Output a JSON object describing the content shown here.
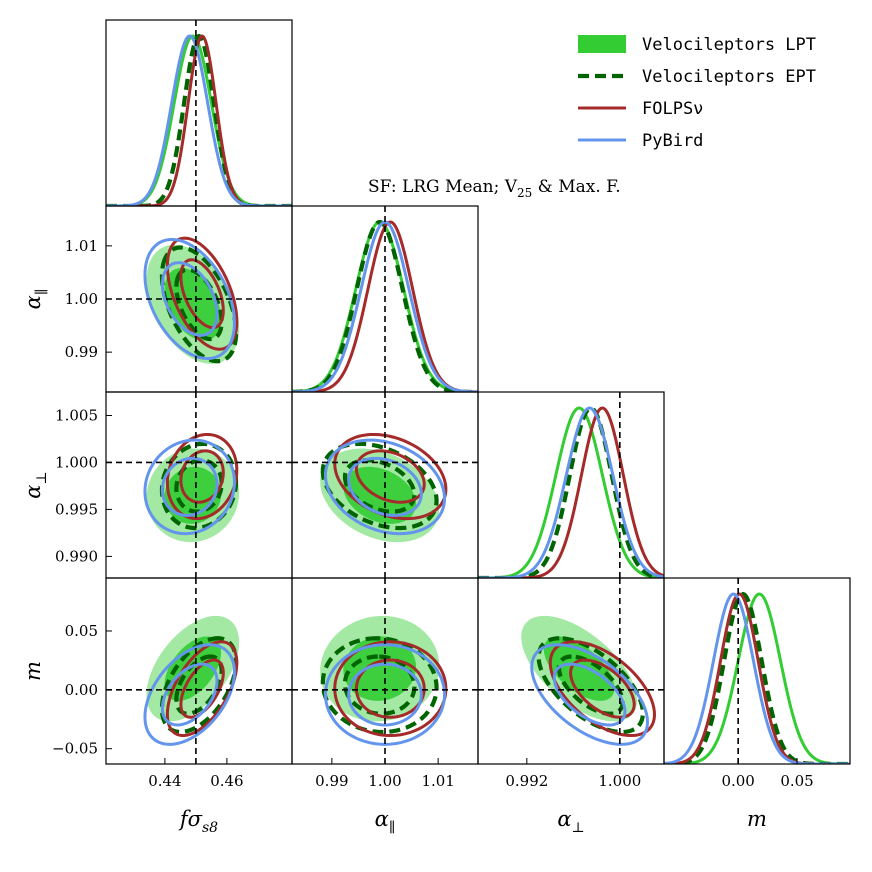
{
  "chart_data": {
    "type": "corner",
    "parameters": [
      {
        "key": "fs8",
        "label": "fσ",
        "label_sub": "s8",
        "ticks": [
          "0.44",
          "0.46"
        ],
        "tick_values": [
          0.44,
          0.46
        ],
        "range": [
          0.421,
          0.481
        ],
        "truth": 0.45
      },
      {
        "key": "apar",
        "label": "α",
        "label_sub": "∥",
        "ticks": [
          "0.99",
          "1.00",
          "1.01"
        ],
        "tick_values": [
          0.99,
          1.0,
          1.01
        ],
        "range": [
          0.9825,
          1.0175
        ],
        "truth": 1.0
      },
      {
        "key": "aperp",
        "label": "α",
        "label_sub": "⊥",
        "ticks": [
          "0.992",
          "1.000"
        ],
        "tick_values": [
          0.992,
          1.0
        ],
        "range": [
          0.9878,
          1.0038
        ],
        "truth": 1.0
      },
      {
        "key": "m",
        "label": "m",
        "label_sub": "",
        "ticks": [
          "0.00",
          "0.05"
        ],
        "tick_values": [
          0.0,
          0.05
        ],
        "range": [
          -0.063,
          0.095
        ],
        "truth": 0.0
      }
    ],
    "row_ticks": {
      "apar": [
        "0.99",
        "1.00",
        "1.01"
      ],
      "aperp": [
        "0.990",
        "0.995",
        "1.000",
        "1.005"
      ],
      "m": [
        "−0.05",
        "0.00",
        "0.05"
      ]
    },
    "row_tick_values": {
      "apar": [
        0.99,
        1.0,
        1.01
      ],
      "aperp": [
        0.99,
        0.995,
        1.0,
        1.005
      ],
      "m": [
        -0.05,
        0.0,
        0.05
      ]
    },
    "row_ranges": {
      "apar": [
        0.9825,
        1.0175
      ],
      "aperp": [
        0.9877,
        1.0075
      ],
      "m": [
        -0.063,
        0.095
      ]
    },
    "series": [
      {
        "name": "Velocileptors LPT",
        "color": "#33cc33",
        "style": "filled",
        "mean": {
          "fs8": 0.449,
          "apar": 0.999,
          "aperp": 0.9965,
          "m": 0.018
        },
        "sigma": {
          "fs8": 0.006,
          "apar": 0.0045,
          "aperp": 0.002,
          "m": 0.018
        },
        "corr": {
          "fs8|apar": -0.4,
          "fs8|aperp": 0.05,
          "fs8|m": 0.5,
          "apar|aperp": -0.3,
          "apar|m": 0.05,
          "aperp|m": -0.6
        }
      },
      {
        "name": "Velocileptors EPT",
        "color": "#006400",
        "style": "dashed",
        "mean": {
          "fs8": 0.451,
          "apar": 0.999,
          "aperp": 0.9975,
          "m": 0.004
        },
        "sigma": {
          "fs8": 0.0048,
          "apar": 0.0043,
          "aperp": 0.0018,
          "m": 0.016
        },
        "corr": {
          "fs8|apar": -0.5,
          "fs8|aperp": 0.1,
          "fs8|m": 0.5,
          "apar|aperp": -0.35,
          "apar|m": -0.05,
          "aperp|m": -0.6
        }
      },
      {
        "name": "FOLPSν",
        "color": "#a52a2a",
        "style": "solid",
        "mean": {
          "fs8": 0.452,
          "apar": 1.001,
          "aperp": 0.9985,
          "m": 0.001
        },
        "sigma": {
          "fs8": 0.0045,
          "apar": 0.0042,
          "aperp": 0.0018,
          "m": 0.016
        },
        "corr": {
          "fs8|apar": -0.5,
          "fs8|aperp": 0.15,
          "fs8|m": 0.55,
          "apar|aperp": -0.3,
          "apar|m": 0.0,
          "aperp|m": -0.55
        }
      },
      {
        "name": "PyBird",
        "color": "#6495ed",
        "style": "solid",
        "mean": {
          "fs8": 0.448,
          "apar": 1.0,
          "aperp": 0.9974,
          "m": -0.004
        },
        "sigma": {
          "fs8": 0.0058,
          "apar": 0.0045,
          "aperp": 0.002,
          "m": 0.017
        },
        "corr": {
          "fs8|apar": -0.4,
          "fs8|aperp": 0.1,
          "fs8|m": 0.45,
          "apar|aperp": -0.25,
          "apar|m": 0.0,
          "aperp|m": -0.55
        }
      }
    ],
    "truth_line_color": "#000000",
    "annotation": "SF: LRG Mean; V",
    "annotation_sub": "25",
    "annotation_tail": " & Max. F.",
    "legend_position": "top-right"
  }
}
